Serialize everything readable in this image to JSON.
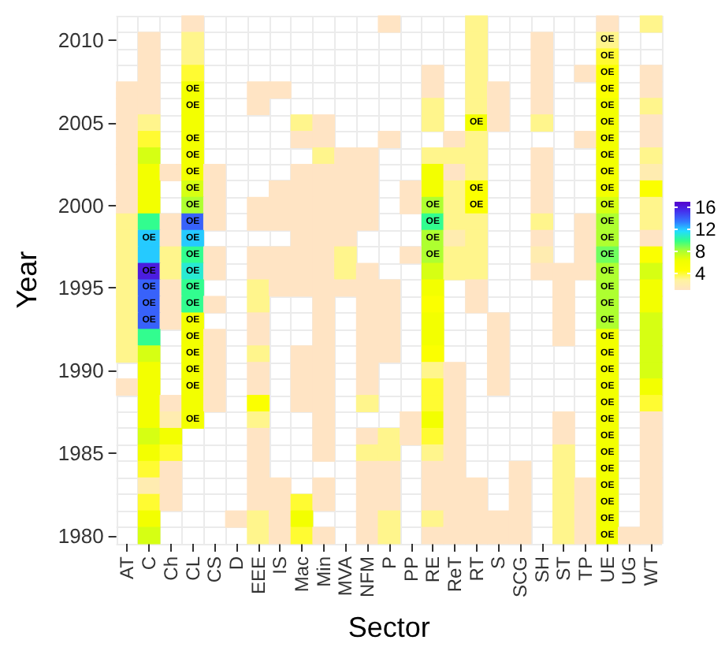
{
  "chart_data": {
    "type": "heatmap",
    "xlabel": "Sector",
    "ylabel": "Year",
    "grid": true,
    "categories": [
      "AT",
      "C",
      "Ch",
      "CL",
      "CS",
      "D",
      "EEE",
      "IS",
      "Mac",
      "Min",
      "MVA",
      "NFM",
      "P",
      "PP",
      "RE",
      "ReT",
      "RT",
      "S",
      "SCG",
      "SH",
      "ST",
      "TP",
      "UE",
      "UG",
      "WT"
    ],
    "y_categories": [
      null,
      "2010",
      null,
      null,
      null,
      null,
      "2005",
      null,
      null,
      null,
      null,
      "2000",
      null,
      null,
      null,
      null,
      "1995",
      null,
      null,
      null,
      null,
      "1990",
      null,
      null,
      null,
      null,
      "1985",
      null,
      null,
      null,
      null,
      "1980"
    ],
    "clim": [
      1,
      17
    ],
    "cticks": [
      4,
      8,
      12,
      16
    ],
    "cells": [
      [
        null,
        null,
        null,
        1,
        null,
        null,
        null,
        null,
        null,
        null,
        null,
        null,
        1,
        null,
        null,
        null,
        3,
        null,
        null,
        null,
        null,
        null,
        1,
        null,
        3
      ],
      [
        null,
        1,
        null,
        3,
        null,
        null,
        null,
        null,
        null,
        null,
        null,
        null,
        null,
        null,
        null,
        null,
        3,
        null,
        null,
        1,
        null,
        null,
        3,
        null,
        null
      ],
      [
        null,
        1,
        null,
        3,
        null,
        null,
        null,
        null,
        null,
        null,
        null,
        null,
        null,
        null,
        null,
        null,
        3,
        null,
        null,
        1,
        null,
        null,
        4,
        null,
        null
      ],
      [
        null,
        1,
        null,
        4,
        null,
        null,
        null,
        null,
        null,
        null,
        null,
        null,
        null,
        null,
        1,
        null,
        3,
        null,
        null,
        1,
        null,
        1,
        5,
        null,
        1
      ],
      [
        1,
        1,
        null,
        6,
        null,
        null,
        1,
        1,
        null,
        null,
        null,
        null,
        null,
        null,
        1,
        null,
        3,
        1,
        null,
        1,
        null,
        null,
        5,
        null,
        1
      ],
      [
        1,
        1,
        null,
        6,
        null,
        null,
        1,
        null,
        null,
        null,
        null,
        null,
        null,
        null,
        3,
        null,
        3,
        1,
        null,
        1,
        null,
        null,
        6,
        null,
        3
      ],
      [
        1,
        3,
        null,
        6,
        null,
        null,
        null,
        null,
        3,
        1,
        null,
        null,
        null,
        null,
        3,
        null,
        6,
        1,
        null,
        3,
        null,
        null,
        6,
        null,
        1
      ],
      [
        1,
        4,
        null,
        6,
        null,
        null,
        null,
        null,
        1,
        1,
        null,
        null,
        1,
        null,
        null,
        1,
        3,
        null,
        null,
        null,
        null,
        1,
        6,
        null,
        1
      ],
      [
        1,
        7,
        null,
        6,
        null,
        null,
        null,
        null,
        null,
        3,
        1,
        1,
        null,
        null,
        3,
        3,
        3,
        null,
        null,
        1,
        null,
        null,
        6,
        null,
        3
      ],
      [
        1,
        6,
        1,
        6,
        1,
        null,
        null,
        null,
        1,
        1,
        1,
        1,
        null,
        null,
        6,
        1,
        3,
        null,
        null,
        1,
        null,
        null,
        6,
        null,
        2
      ],
      [
        1,
        6,
        null,
        7,
        1,
        null,
        null,
        1,
        1,
        1,
        1,
        1,
        null,
        1,
        6,
        3,
        5,
        null,
        null,
        1,
        null,
        null,
        6,
        null,
        5
      ],
      [
        1,
        6,
        null,
        8,
        1,
        null,
        1,
        1,
        1,
        1,
        1,
        1,
        null,
        1,
        8,
        3,
        5,
        null,
        null,
        1,
        null,
        null,
        7,
        null,
        3
      ],
      [
        3,
        10,
        1,
        14,
        1,
        null,
        1,
        1,
        1,
        1,
        1,
        1,
        null,
        null,
        10,
        3,
        3,
        null,
        null,
        3,
        null,
        1,
        8,
        null,
        3
      ],
      [
        3,
        12,
        1,
        12,
        null,
        null,
        null,
        null,
        1,
        1,
        1,
        null,
        null,
        null,
        8,
        2,
        3,
        null,
        null,
        1,
        null,
        1,
        8,
        null,
        1
      ],
      [
        3,
        12,
        3,
        10,
        1,
        null,
        1,
        1,
        1,
        1,
        3,
        null,
        null,
        1,
        8,
        3,
        3,
        null,
        null,
        2,
        null,
        1,
        9,
        null,
        5
      ],
      [
        3,
        16,
        3,
        11,
        1,
        null,
        1,
        1,
        1,
        1,
        3,
        1,
        null,
        null,
        7,
        3,
        3,
        null,
        null,
        1,
        1,
        1,
        8,
        null,
        7
      ],
      [
        3,
        14,
        1,
        10,
        null,
        null,
        3,
        1,
        1,
        1,
        1,
        1,
        1,
        null,
        6,
        null,
        1,
        null,
        null,
        null,
        1,
        null,
        8,
        null,
        6
      ],
      [
        3,
        14,
        1,
        10,
        1,
        null,
        3,
        null,
        null,
        1,
        null,
        1,
        1,
        null,
        5,
        null,
        1,
        null,
        null,
        null,
        1,
        null,
        8,
        null,
        6
      ],
      [
        3,
        14,
        1,
        6,
        null,
        null,
        1,
        null,
        null,
        1,
        null,
        1,
        1,
        null,
        6,
        null,
        null,
        1,
        null,
        null,
        1,
        null,
        8,
        null,
        7
      ],
      [
        3,
        10,
        null,
        6,
        1,
        null,
        1,
        null,
        null,
        1,
        null,
        1,
        1,
        null,
        6,
        null,
        null,
        1,
        null,
        null,
        1,
        null,
        6,
        null,
        7
      ],
      [
        3,
        7,
        null,
        6,
        1,
        null,
        3,
        null,
        1,
        1,
        null,
        1,
        1,
        null,
        5,
        null,
        null,
        1,
        null,
        null,
        null,
        null,
        6,
        null,
        7
      ],
      [
        null,
        6,
        null,
        6,
        1,
        null,
        1,
        null,
        1,
        1,
        null,
        1,
        null,
        null,
        3,
        1,
        null,
        1,
        null,
        null,
        null,
        null,
        6,
        null,
        7
      ],
      [
        1,
        6,
        null,
        6,
        1,
        null,
        1,
        null,
        1,
        1,
        null,
        1,
        null,
        null,
        4,
        1,
        null,
        1,
        null,
        null,
        null,
        null,
        6,
        null,
        6
      ],
      [
        null,
        6,
        1,
        6,
        1,
        null,
        5,
        null,
        1,
        1,
        null,
        3,
        null,
        null,
        4,
        1,
        null,
        null,
        null,
        null,
        null,
        null,
        6,
        null,
        4
      ],
      [
        null,
        6,
        2,
        6,
        null,
        null,
        3,
        null,
        null,
        1,
        null,
        null,
        null,
        1,
        6,
        1,
        null,
        null,
        null,
        null,
        1,
        null,
        6,
        null,
        1
      ],
      [
        null,
        7,
        6,
        null,
        null,
        null,
        1,
        null,
        null,
        1,
        null,
        1,
        3,
        1,
        4,
        1,
        null,
        null,
        null,
        null,
        1,
        null,
        6,
        null,
        1
      ],
      [
        null,
        6,
        4,
        null,
        null,
        null,
        1,
        null,
        null,
        1,
        null,
        3,
        3,
        null,
        3,
        1,
        null,
        null,
        null,
        null,
        3,
        null,
        6,
        null,
        1
      ],
      [
        null,
        4,
        1,
        null,
        null,
        null,
        1,
        null,
        null,
        null,
        null,
        1,
        1,
        null,
        1,
        1,
        null,
        null,
        1,
        null,
        3,
        null,
        6,
        null,
        1
      ],
      [
        null,
        2,
        1,
        null,
        null,
        null,
        1,
        1,
        null,
        1,
        null,
        1,
        1,
        null,
        1,
        1,
        1,
        null,
        1,
        null,
        3,
        1,
        6,
        null,
        1
      ],
      [
        null,
        4,
        1,
        null,
        null,
        null,
        1,
        1,
        4,
        1,
        null,
        1,
        1,
        null,
        1,
        1,
        1,
        null,
        1,
        null,
        3,
        1,
        6,
        null,
        1
      ],
      [
        null,
        6,
        null,
        null,
        null,
        1,
        3,
        1,
        6,
        null,
        null,
        1,
        3,
        null,
        3,
        1,
        1,
        1,
        1,
        null,
        3,
        1,
        6,
        null,
        1
      ],
      [
        null,
        7,
        null,
        null,
        null,
        null,
        3,
        1,
        4,
        1,
        null,
        1,
        3,
        null,
        1,
        1,
        1,
        1,
        1,
        null,
        3,
        1,
        6,
        1,
        1
      ]
    ],
    "cell_labels": [
      [
        null,
        null,
        null,
        null,
        null,
        null,
        null,
        null,
        null,
        null,
        null,
        null,
        null,
        null,
        null,
        null,
        null,
        null,
        null,
        null,
        null,
        null,
        null,
        null,
        null
      ],
      [
        null,
        null,
        null,
        null,
        null,
        null,
        null,
        null,
        null,
        null,
        null,
        null,
        null,
        null,
        null,
        null,
        null,
        null,
        null,
        null,
        null,
        null,
        "OE",
        null,
        null
      ],
      [
        null,
        null,
        null,
        null,
        null,
        null,
        null,
        null,
        null,
        null,
        null,
        null,
        null,
        null,
        null,
        null,
        null,
        null,
        null,
        null,
        null,
        null,
        "OE",
        null,
        null
      ],
      [
        null,
        null,
        null,
        null,
        null,
        null,
        null,
        null,
        null,
        null,
        null,
        null,
        null,
        null,
        null,
        null,
        null,
        null,
        null,
        null,
        null,
        null,
        "OE",
        null,
        null
      ],
      [
        null,
        null,
        null,
        "OE",
        null,
        null,
        null,
        null,
        null,
        null,
        null,
        null,
        null,
        null,
        null,
        null,
        null,
        null,
        null,
        null,
        null,
        null,
        "OE",
        null,
        null
      ],
      [
        null,
        null,
        null,
        "OE",
        null,
        null,
        null,
        null,
        null,
        null,
        null,
        null,
        null,
        null,
        null,
        null,
        null,
        null,
        null,
        null,
        null,
        null,
        "OE",
        null,
        null
      ],
      [
        null,
        null,
        null,
        null,
        null,
        null,
        null,
        null,
        null,
        null,
        null,
        null,
        null,
        null,
        null,
        null,
        "OE",
        null,
        null,
        null,
        null,
        null,
        "OE",
        null,
        null
      ],
      [
        null,
        null,
        null,
        "OE",
        null,
        null,
        null,
        null,
        null,
        null,
        null,
        null,
        null,
        null,
        null,
        null,
        null,
        null,
        null,
        null,
        null,
        null,
        "OE",
        null,
        null
      ],
      [
        null,
        null,
        null,
        "OE",
        null,
        null,
        null,
        null,
        null,
        null,
        null,
        null,
        null,
        null,
        null,
        null,
        null,
        null,
        null,
        null,
        null,
        null,
        "OE",
        null,
        null
      ],
      [
        null,
        null,
        null,
        "OE",
        null,
        null,
        null,
        null,
        null,
        null,
        null,
        null,
        null,
        null,
        null,
        null,
        null,
        null,
        null,
        null,
        null,
        null,
        "OE",
        null,
        null
      ],
      [
        null,
        null,
        null,
        "OE",
        null,
        null,
        null,
        null,
        null,
        null,
        null,
        null,
        null,
        null,
        null,
        null,
        "OE",
        null,
        null,
        null,
        null,
        null,
        "OE",
        null,
        null
      ],
      [
        null,
        null,
        null,
        "OE",
        null,
        null,
        null,
        null,
        null,
        null,
        null,
        null,
        null,
        null,
        "OE",
        null,
        "OE",
        null,
        null,
        null,
        null,
        null,
        "OE",
        null,
        null
      ],
      [
        null,
        null,
        null,
        "OE",
        null,
        null,
        null,
        null,
        null,
        null,
        null,
        null,
        null,
        null,
        "OE",
        null,
        null,
        null,
        null,
        null,
        null,
        null,
        "OE",
        null,
        null
      ],
      [
        null,
        "OE",
        null,
        "OE",
        null,
        null,
        null,
        null,
        null,
        null,
        null,
        null,
        null,
        null,
        "OE",
        null,
        null,
        null,
        null,
        null,
        null,
        null,
        "OE",
        null,
        null
      ],
      [
        null,
        null,
        null,
        "OE",
        null,
        null,
        null,
        null,
        null,
        null,
        null,
        null,
        null,
        null,
        "OE",
        null,
        null,
        null,
        null,
        null,
        null,
        null,
        "OE",
        null,
        null
      ],
      [
        null,
        "OE",
        null,
        "OE",
        null,
        null,
        null,
        null,
        null,
        null,
        null,
        null,
        null,
        null,
        null,
        null,
        null,
        null,
        null,
        null,
        null,
        null,
        "OE",
        null,
        null
      ],
      [
        null,
        "OE",
        null,
        "OE",
        null,
        null,
        null,
        null,
        null,
        null,
        null,
        null,
        null,
        null,
        null,
        null,
        null,
        null,
        null,
        null,
        null,
        null,
        "OE",
        null,
        null
      ],
      [
        null,
        "OE",
        null,
        "OE",
        null,
        null,
        null,
        null,
        null,
        null,
        null,
        null,
        null,
        null,
        null,
        null,
        null,
        null,
        null,
        null,
        null,
        null,
        "OE",
        null,
        null
      ],
      [
        null,
        "OE",
        null,
        "OE",
        null,
        null,
        null,
        null,
        null,
        null,
        null,
        null,
        null,
        null,
        null,
        null,
        null,
        null,
        null,
        null,
        null,
        null,
        "OE",
        null,
        null
      ],
      [
        null,
        null,
        null,
        "OE",
        null,
        null,
        null,
        null,
        null,
        null,
        null,
        null,
        null,
        null,
        null,
        null,
        null,
        null,
        null,
        null,
        null,
        null,
        "OE",
        null,
        null
      ],
      [
        null,
        null,
        null,
        "OE",
        null,
        null,
        null,
        null,
        null,
        null,
        null,
        null,
        null,
        null,
        null,
        null,
        null,
        null,
        null,
        null,
        null,
        null,
        "OE",
        null,
        null
      ],
      [
        null,
        null,
        null,
        "OE",
        null,
        null,
        null,
        null,
        null,
        null,
        null,
        null,
        null,
        null,
        null,
        null,
        null,
        null,
        null,
        null,
        null,
        null,
        "OE",
        null,
        null
      ],
      [
        null,
        null,
        null,
        "OE",
        null,
        null,
        null,
        null,
        null,
        null,
        null,
        null,
        null,
        null,
        null,
        null,
        null,
        null,
        null,
        null,
        null,
        null,
        "OE",
        null,
        null
      ],
      [
        null,
        null,
        null,
        null,
        null,
        null,
        null,
        null,
        null,
        null,
        null,
        null,
        null,
        null,
        null,
        null,
        null,
        null,
        null,
        null,
        null,
        null,
        "OE",
        null,
        null
      ],
      [
        null,
        null,
        null,
        "OE",
        null,
        null,
        null,
        null,
        null,
        null,
        null,
        null,
        null,
        null,
        null,
        null,
        null,
        null,
        null,
        null,
        null,
        null,
        "OE",
        null,
        null
      ],
      [
        null,
        null,
        null,
        null,
        null,
        null,
        null,
        null,
        null,
        null,
        null,
        null,
        null,
        null,
        null,
        null,
        null,
        null,
        null,
        null,
        null,
        null,
        "OE",
        null,
        null
      ],
      [
        null,
        null,
        null,
        null,
        null,
        null,
        null,
        null,
        null,
        null,
        null,
        null,
        null,
        null,
        null,
        null,
        null,
        null,
        null,
        null,
        null,
        null,
        "OE",
        null,
        null
      ],
      [
        null,
        null,
        null,
        null,
        null,
        null,
        null,
        null,
        null,
        null,
        null,
        null,
        null,
        null,
        null,
        null,
        null,
        null,
        null,
        null,
        null,
        null,
        "OE",
        null,
        null
      ],
      [
        null,
        null,
        null,
        null,
        null,
        null,
        null,
        null,
        null,
        null,
        null,
        null,
        null,
        null,
        null,
        null,
        null,
        null,
        null,
        null,
        null,
        null,
        "OE",
        null,
        null
      ],
      [
        null,
        null,
        null,
        null,
        null,
        null,
        null,
        null,
        null,
        null,
        null,
        null,
        null,
        null,
        null,
        null,
        null,
        null,
        null,
        null,
        null,
        null,
        "OE",
        null,
        null
      ],
      [
        null,
        null,
        null,
        null,
        null,
        null,
        null,
        null,
        null,
        null,
        null,
        null,
        null,
        null,
        null,
        null,
        null,
        null,
        null,
        null,
        null,
        null,
        "OE",
        null,
        null
      ],
      [
        null,
        null,
        null,
        null,
        null,
        null,
        null,
        null,
        null,
        null,
        null,
        null,
        null,
        null,
        null,
        null,
        null,
        null,
        null,
        null,
        null,
        null,
        "OE",
        null,
        null
      ]
    ]
  }
}
